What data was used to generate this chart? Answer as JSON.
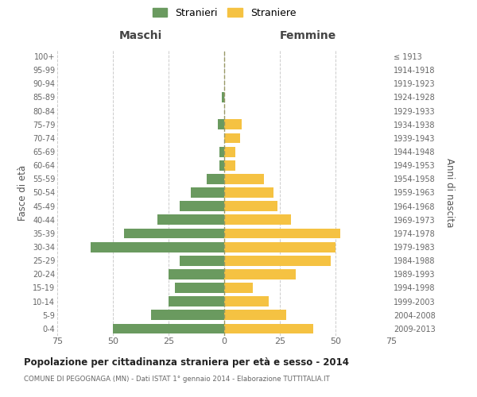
{
  "age_groups": [
    "0-4",
    "5-9",
    "10-14",
    "15-19",
    "20-24",
    "25-29",
    "30-34",
    "35-39",
    "40-44",
    "45-49",
    "50-54",
    "55-59",
    "60-64",
    "65-69",
    "70-74",
    "75-79",
    "80-84",
    "85-89",
    "90-94",
    "95-99",
    "100+"
  ],
  "birth_years": [
    "2009-2013",
    "2004-2008",
    "1999-2003",
    "1994-1998",
    "1989-1993",
    "1984-1988",
    "1979-1983",
    "1974-1978",
    "1969-1973",
    "1964-1968",
    "1959-1963",
    "1954-1958",
    "1949-1953",
    "1944-1948",
    "1939-1943",
    "1934-1938",
    "1929-1933",
    "1924-1928",
    "1919-1923",
    "1914-1918",
    "≤ 1913"
  ],
  "males": [
    50,
    33,
    25,
    22,
    25,
    20,
    60,
    45,
    30,
    20,
    15,
    8,
    2,
    2,
    0,
    3,
    0,
    1,
    0,
    0,
    0
  ],
  "females": [
    40,
    28,
    20,
    13,
    32,
    48,
    50,
    52,
    30,
    24,
    22,
    18,
    5,
    5,
    7,
    8,
    0,
    0,
    0,
    0,
    0
  ],
  "male_color": "#6a9a5f",
  "female_color": "#f5c242",
  "background_color": "#ffffff",
  "grid_color": "#cccccc",
  "title": "Popolazione per cittadinanza straniera per età e sesso - 2014",
  "subtitle": "COMUNE DI PEGOGNAGA (MN) - Dati ISTAT 1° gennaio 2014 - Elaborazione TUTTITALIA.IT",
  "legend_male": "Stranieri",
  "legend_female": "Straniere",
  "xlabel_left": "Maschi",
  "xlabel_right": "Femmine",
  "ylabel_left": "Fasce di età",
  "ylabel_right": "Anni di nascita",
  "xlim": 75,
  "xticks": [
    -75,
    -50,
    -25,
    0,
    25,
    50,
    75
  ],
  "xticklabels": [
    "75",
    "50",
    "25",
    "0",
    "25",
    "50",
    "75"
  ]
}
